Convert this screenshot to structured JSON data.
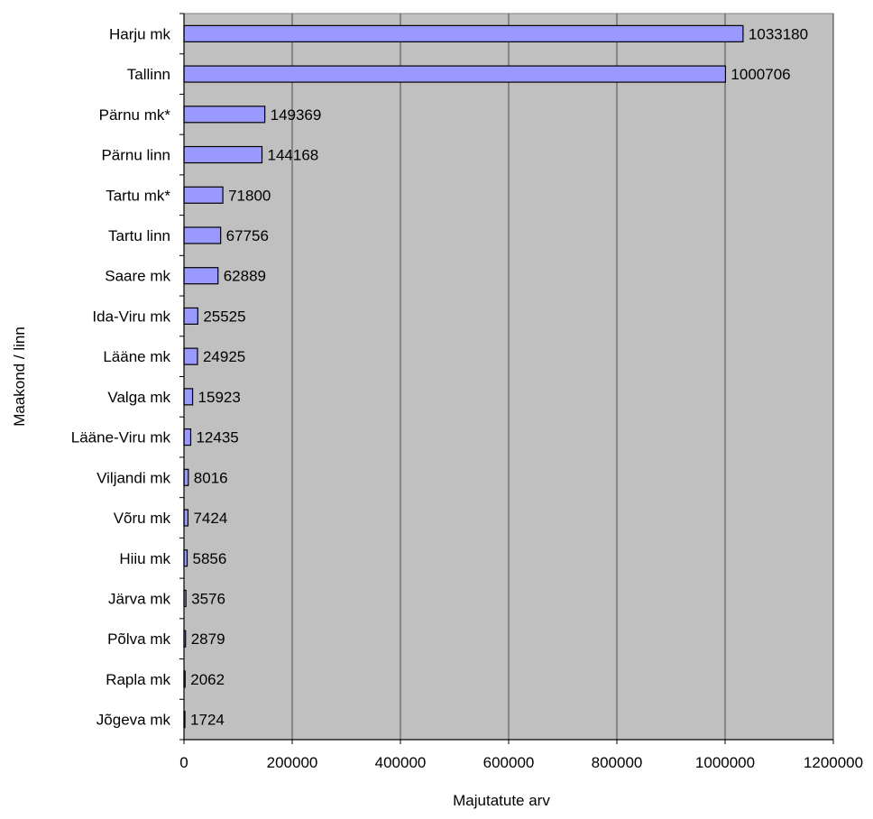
{
  "colors": {
    "plot_background": "#c0c0c0",
    "bar_fill": "#9999ff",
    "bar_stroke": "#000000",
    "gridline": "#000000",
    "page_background": "#ffffff"
  },
  "chart_data": {
    "type": "bar",
    "orientation": "horizontal",
    "title": "",
    "xlabel": "Majutatute arv",
    "ylabel": "Maakond / linn",
    "xlim": [
      0,
      1200000
    ],
    "x_ticks": [
      "0",
      "200000",
      "400000",
      "600000",
      "800000",
      "1000000",
      "1200000"
    ],
    "grid": true,
    "legend": "none",
    "categories": [
      "Harju mk",
      "Tallinn",
      "Pärnu mk*",
      "Pärnu linn",
      "Tartu mk*",
      "Tartu linn",
      "Saare mk",
      "Ida-Viru mk",
      "Lääne mk",
      "Valga mk",
      "Lääne-Viru mk",
      "Viljandi mk",
      "Võru mk",
      "Hiiu mk",
      "Järva mk",
      "Põlva mk",
      "Rapla mk",
      "Jõgeva mk"
    ],
    "values": [
      1033180,
      1000706,
      149369,
      144168,
      71800,
      67756,
      62889,
      25525,
      24925,
      15923,
      12435,
      8016,
      7424,
      5856,
      3576,
      2879,
      2062,
      1724
    ],
    "data_labels": [
      "1033180",
      "1000706",
      "149369",
      "144168",
      "71800",
      "67756",
      "62889",
      "25525",
      "24925",
      "15923",
      "12435",
      "8016",
      "7424",
      "5856",
      "3576",
      "2879",
      "2062",
      "1724"
    ]
  }
}
